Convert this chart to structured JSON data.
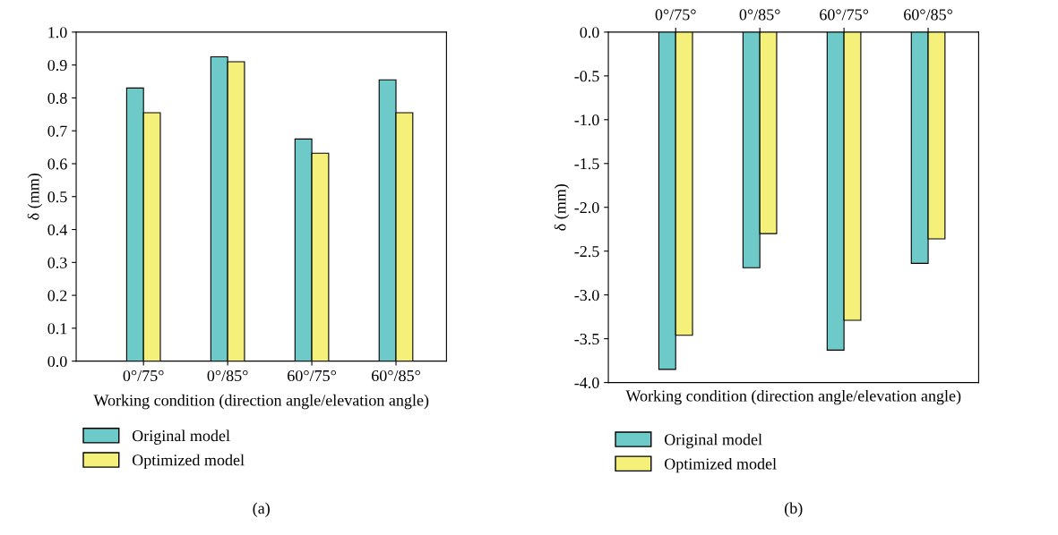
{
  "chart_data": [
    {
      "type": "bar",
      "xlabel": "Working condition (direction angle/elevation angle)",
      "ylabel": "δ (mm)",
      "categories": [
        "0°/75°",
        "0°/85°",
        "60°/75°",
        "60°/85°"
      ],
      "series": [
        {
          "name": "Original model",
          "color": "#6dcac8",
          "values": [
            0.83,
            0.925,
            0.675,
            0.855
          ]
        },
        {
          "name": "Optimized model",
          "color": "#f5f07a",
          "values": [
            0.755,
            0.91,
            0.632,
            0.755
          ]
        }
      ],
      "ylim": [
        0,
        1
      ],
      "yticks": [
        {
          "value": 0,
          "label": "0.0"
        },
        {
          "value": 0.1,
          "label": "0.1"
        },
        {
          "value": 0.2,
          "label": "0.2"
        },
        {
          "value": 0.3,
          "label": "0.3"
        },
        {
          "value": 0.4,
          "label": "0.4"
        },
        {
          "value": 0.5,
          "label": "0.5"
        },
        {
          "value": 0.6,
          "label": "0.6"
        },
        {
          "value": 0.7,
          "label": "0.7"
        },
        {
          "value": 0.8,
          "label": "0.8"
        },
        {
          "value": 0.9,
          "label": "0.9"
        },
        {
          "value": 1,
          "label": "1.0"
        }
      ],
      "grid": false,
      "legend": "bottom",
      "annotations": [
        "(a)"
      ]
    },
    {
      "type": "bar",
      "xlabel": "Working condition (direction angle/elevation angle)",
      "ylabel": "δ (mm)",
      "categories": [
        "0°/75°",
        "0°/85°",
        "60°/75°",
        "60°/85°"
      ],
      "series": [
        {
          "name": "Original model",
          "color": "#6dcac8",
          "values": [
            -3.85,
            -2.69,
            -3.63,
            -2.64
          ]
        },
        {
          "name": "Optimized model",
          "color": "#f5f07a",
          "values": [
            -3.46,
            -2.3,
            -3.29,
            -2.36
          ]
        }
      ],
      "ylim": [
        -4,
        0
      ],
      "yticks": [
        {
          "value": -4,
          "label": "-4.0"
        },
        {
          "value": -3.5,
          "label": "-3.5"
        },
        {
          "value": -3,
          "label": "-3.0"
        },
        {
          "value": -2.5,
          "label": "-2.5"
        },
        {
          "value": -2,
          "label": "-2.0"
        },
        {
          "value": -1.5,
          "label": "-1.5"
        },
        {
          "value": -1,
          "label": "-1.0"
        },
        {
          "value": -0.5,
          "label": "-0.5"
        },
        {
          "value": 0,
          "label": "0.0"
        }
      ],
      "grid": false,
      "legend": "bottom",
      "annotations": [
        "(b)"
      ]
    }
  ]
}
